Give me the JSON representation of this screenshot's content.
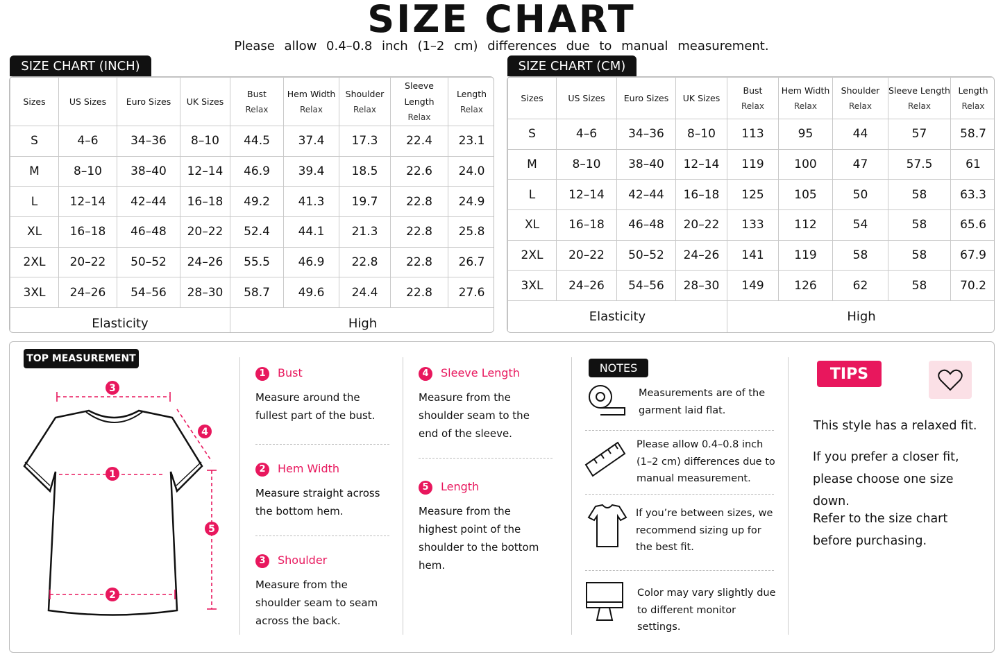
{
  "header": {
    "title": "SIZE CHART",
    "subtitle": "Please allow 0.4–0.8 inch (1–2 cm) differences due to manual measurement."
  },
  "tables": [
    {
      "title": "SIZE CHART (INCH)",
      "columns": [
        [
          "Sizes"
        ],
        [
          "US Sizes"
        ],
        [
          "Euro Sizes"
        ],
        [
          "UK Sizes"
        ],
        [
          "Bust",
          "Relax"
        ],
        [
          "Hem Width",
          "Relax"
        ],
        [
          "Shoulder",
          "Relax"
        ],
        [
          "Sleeve Length",
          "Relax"
        ],
        [
          "Length",
          "Relax"
        ]
      ],
      "rows": [
        [
          "S",
          "4–6",
          "34–36",
          "8–10",
          "44.5",
          "37.4",
          "17.3",
          "22.4",
          "23.1"
        ],
        [
          "M",
          "8–10",
          "38–40",
          "12–14",
          "46.9",
          "39.4",
          "18.5",
          "22.6",
          "24.0"
        ],
        [
          "L",
          "12–14",
          "42–44",
          "16–18",
          "49.2",
          "41.3",
          "19.7",
          "22.8",
          "24.9"
        ],
        [
          "XL",
          "16–18",
          "46–48",
          "20–22",
          "52.4",
          "44.1",
          "21.3",
          "22.8",
          "25.8"
        ],
        [
          "2XL",
          "20–22",
          "50–52",
          "24–26",
          "55.5",
          "46.9",
          "22.8",
          "22.8",
          "26.7"
        ],
        [
          "3XL",
          "24–26",
          "54–56",
          "28–30",
          "58.7",
          "49.6",
          "24.4",
          "22.8",
          "27.6"
        ]
      ],
      "footer": [
        "Elasticity",
        "High"
      ]
    },
    {
      "title": "SIZE CHART (CM)",
      "columns": [
        [
          "Sizes"
        ],
        [
          "US Sizes"
        ],
        [
          "Euro Sizes"
        ],
        [
          "UK Sizes"
        ],
        [
          "Bust",
          "Relax"
        ],
        [
          "Hem Width",
          "Relax"
        ],
        [
          "Shoulder",
          "Relax"
        ],
        [
          "Sleeve Length",
          "Relax"
        ],
        [
          "Length",
          "Relax"
        ]
      ],
      "rows": [
        [
          "S",
          "4–6",
          "34–36",
          "8–10",
          "113",
          "95",
          "44",
          "57",
          "58.7"
        ],
        [
          "M",
          "8–10",
          "38–40",
          "12–14",
          "119",
          "100",
          "47",
          "57.5",
          "61"
        ],
        [
          "L",
          "12–14",
          "42–44",
          "16–18",
          "125",
          "105",
          "50",
          "58",
          "63.3"
        ],
        [
          "XL",
          "16–18",
          "46–48",
          "20–22",
          "133",
          "112",
          "54",
          "58",
          "65.6"
        ],
        [
          "2XL",
          "20–22",
          "50–52",
          "24–26",
          "141",
          "119",
          "58",
          "58",
          "67.9"
        ],
        [
          "3XL",
          "24–26",
          "54–56",
          "28–30",
          "149",
          "126",
          "62",
          "58",
          "70.2"
        ]
      ],
      "footer": [
        "Elasticity",
        "High"
      ]
    }
  ],
  "measurement": {
    "title": "TOP MEASUREMENT",
    "items": [
      {
        "number": "1",
        "name": "Bust",
        "text": "Measure around the fullest part of the bust."
      },
      {
        "number": "2",
        "name": "Hem Width",
        "text": "Measure straight across the bottom hem."
      },
      {
        "number": "3",
        "name": "Shoulder",
        "text": "Measure from the shoulder seam to seam across the back."
      },
      {
        "number": "4",
        "name": "Sleeve Length",
        "text": "Measure from the shoulder seam to the end of the sleeve."
      },
      {
        "number": "5",
        "name": "Length",
        "text": "Measure from the highest point of the shoulder to the bottom hem."
      }
    ]
  },
  "notes": {
    "title": "NOTES",
    "items": [
      "Measurements are of the garment laid flat.",
      "Please allow 0.4–0.8 inch (1–2 cm) differences due to manual measurement.",
      "If you’re between sizes, we recommend sizing up for the best fit.",
      "Color may vary slightly due to different monitor settings."
    ]
  },
  "tips": {
    "title": "TIPS",
    "lines": [
      "This style has a relaxed fit.",
      "If you prefer a closer fit, please choose one size down.",
      "Refer to the size chart before purchasing."
    ]
  }
}
